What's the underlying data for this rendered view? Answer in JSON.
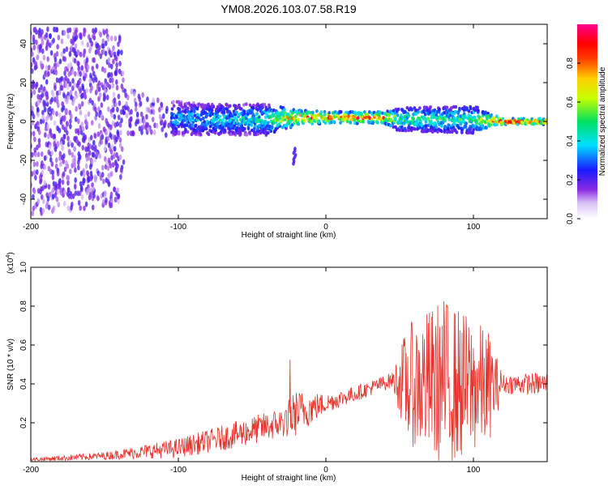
{
  "chart_data": [
    {
      "type": "heatmap",
      "title": "YM08.2026.103.07.58.R19",
      "xlabel": "Height of straight line (km)",
      "ylabel": "Frequency (Hz)",
      "xlim": [
        -200,
        150
      ],
      "ylim": [
        -50,
        50
      ],
      "xticks": [
        -200,
        -100,
        0,
        100
      ],
      "yticks": [
        -40,
        -20,
        0,
        20,
        40
      ],
      "colorbar": {
        "label": "Normalized spectral amplitude",
        "range": [
          0,
          1
        ],
        "ticks": [
          "0.0",
          "0.2",
          "0.4",
          "0.6",
          "0.8"
        ]
      },
      "band": [
        {
          "x": -200,
          "center": 0,
          "halfwidth": 48,
          "amp": 0.15
        },
        {
          "x": -140,
          "center": 2,
          "halfwidth": 45,
          "amp": 0.2
        },
        {
          "x": -135,
          "center": 5,
          "halfwidth": 12,
          "amp": 0.3
        },
        {
          "x": -110,
          "center": 2,
          "halfwidth": 9,
          "amp": 0.35
        },
        {
          "x": -80,
          "center": 1,
          "halfwidth": 8,
          "amp": 0.4
        },
        {
          "x": -40,
          "center": 1,
          "halfwidth": 8,
          "amp": 0.45
        },
        {
          "x": -20,
          "center": 2,
          "halfwidth": 4,
          "amp": 0.8
        },
        {
          "x": 0,
          "center": 2,
          "halfwidth": 3,
          "amp": 0.85
        },
        {
          "x": 40,
          "center": 2,
          "halfwidth": 3,
          "amp": 0.85
        },
        {
          "x": 50,
          "center": 1,
          "halfwidth": 6,
          "amp": 0.5
        },
        {
          "x": 100,
          "center": 1,
          "halfwidth": 7,
          "amp": 0.5
        },
        {
          "x": 120,
          "center": 0,
          "halfwidth": 1.5,
          "amp": 0.95
        },
        {
          "x": 150,
          "center": 0,
          "halfwidth": 1.5,
          "amp": 0.95
        }
      ]
    },
    {
      "type": "line",
      "xlabel": "Height of straight line (km)",
      "ylabel": "SNR (10 * v/v)",
      "yscale_label": "(x10",
      "yscale_exp": "4",
      "yscale_close": ")",
      "xlim": [
        -200,
        150
      ],
      "ylim": [
        0,
        1.0
      ],
      "xticks": [
        -200,
        -100,
        0,
        100
      ],
      "yticks": [
        "0.2",
        "0.4",
        "0.6",
        "0.8",
        "1.0"
      ],
      "color": "#e8312a",
      "envelope": [
        {
          "x": -200,
          "base": 0.01,
          "amp": 0.01
        },
        {
          "x": -150,
          "base": 0.03,
          "amp": 0.02
        },
        {
          "x": -100,
          "base": 0.07,
          "amp": 0.05
        },
        {
          "x": -60,
          "base": 0.14,
          "amp": 0.07
        },
        {
          "x": -30,
          "base": 0.2,
          "amp": 0.08
        },
        {
          "x": -20,
          "base": 0.25,
          "amp": 0.12
        },
        {
          "x": 0,
          "base": 0.3,
          "amp": 0.05
        },
        {
          "x": 20,
          "base": 0.35,
          "amp": 0.04
        },
        {
          "x": 45,
          "base": 0.42,
          "amp": 0.04
        },
        {
          "x": 55,
          "base": 0.4,
          "amp": 0.3
        },
        {
          "x": 80,
          "base": 0.4,
          "amp": 0.45
        },
        {
          "x": 110,
          "base": 0.38,
          "amp": 0.3
        },
        {
          "x": 120,
          "base": 0.4,
          "amp": 0.05
        },
        {
          "x": 150,
          "base": 0.4,
          "amp": 0.06
        }
      ]
    }
  ]
}
